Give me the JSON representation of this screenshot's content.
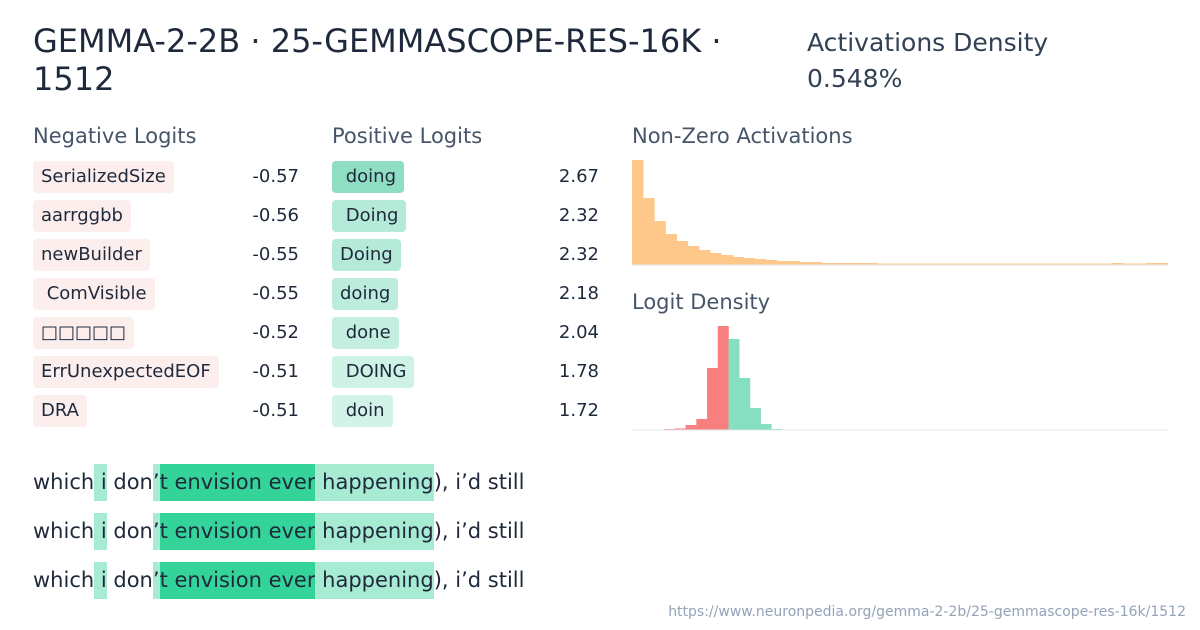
{
  "header": {
    "title": "GEMMA-2-2B · 25-GEMMASCOPE-RES-16K · 1512",
    "density_label": "Activations Density",
    "density_value": "0.548%"
  },
  "negative_logits": {
    "title": "Negative Logits",
    "color": "#fdeeee",
    "tokens": [
      "SerializedSize",
      "aarrggbb",
      "newBuilder",
      " ComVisible",
      "□□□□□",
      "ErrUnexpectedEOF",
      "DRA"
    ],
    "values": [
      -0.57,
      -0.56,
      -0.55,
      -0.55,
      -0.52,
      -0.51,
      -0.51
    ]
  },
  "positive_logits": {
    "title": "Positive Logits",
    "tokens": [
      " doing",
      " Doing",
      "Doing",
      "doing",
      " done",
      " DOING",
      " doin"
    ],
    "values": [
      2.67,
      2.32,
      2.32,
      2.18,
      2.04,
      1.78,
      1.72
    ],
    "colors": [
      "#8fdec3",
      "#b4ead7",
      "#b4ead7",
      "#bcecdb",
      "#c4eee0",
      "#cff2e6",
      "#d2f3e8"
    ]
  },
  "activations_chart": {
    "title": "Non-Zero Activations",
    "color": "#fdc88a",
    "values": [
      105,
      67,
      44,
      31,
      24,
      19,
      15,
      12,
      10,
      8,
      7,
      6,
      5,
      4,
      4,
      3,
      3,
      2,
      2,
      2,
      2,
      2,
      1.5,
      1.5,
      1.5,
      1.5,
      1.5,
      1.5,
      1.5,
      1.5,
      1.5,
      1.5,
      1.5,
      1.5,
      1.5,
      1.5,
      1.5,
      1.5,
      1.5,
      1.5,
      1.5,
      1.5,
      1.5,
      2,
      1.5,
      1.5,
      2,
      2
    ]
  },
  "logit_density_chart": {
    "title": "Logit Density",
    "values": [
      0,
      0,
      0,
      1,
      1.5,
      5,
      11,
      62,
      104,
      91,
      52,
      22,
      6,
      1,
      0,
      0,
      0,
      0,
      0,
      0,
      0,
      0,
      0,
      0,
      0,
      0,
      0,
      0,
      0,
      0,
      0,
      0,
      0,
      0,
      0,
      0,
      0,
      0,
      0,
      0,
      0,
      0,
      0,
      0,
      0,
      0,
      0,
      0,
      0,
      0
    ],
    "colors": [
      "#f87f7f",
      "#f87f7f",
      "#f87f7f",
      "#f87f7f",
      "#f87f7f",
      "#f87f7f",
      "#f87f7f",
      "#f87f7f",
      "#f87f7f",
      "#86dfc0",
      "#86dfc0",
      "#86dfc0",
      "#86dfc0",
      "#86dfc0",
      "#86dfc0",
      "#86dfc0",
      "#86dfc0",
      "#86dfc0",
      "#86dfc0",
      "#86dfc0",
      "#86dfc0",
      "#86dfc0",
      "#86dfc0",
      "#86dfc0",
      "#86dfc0",
      "#86dfc0",
      "#86dfc0",
      "#86dfc0",
      "#86dfc0",
      "#86dfc0",
      "#86dfc0",
      "#86dfc0",
      "#86dfc0",
      "#86dfc0",
      "#86dfc0",
      "#86dfc0",
      "#86dfc0",
      "#86dfc0",
      "#86dfc0",
      "#86dfc0",
      "#86dfc0",
      "#86dfc0",
      "#86dfc0",
      "#86dfc0",
      "#86dfc0",
      "#86dfc0",
      "#86dfc0",
      "#86dfc0",
      "#86dfc0",
      "#86dfc0"
    ]
  },
  "examples": [
    {
      "tokens": [
        "which",
        " i",
        " don",
        "’",
        "t",
        " envision",
        " ever",
        " happening",
        "),",
        " i’d",
        " still"
      ],
      "colors": [
        "none",
        "#a6ebd2",
        "none",
        "#a6ebd2",
        "#34d399",
        "#34d399",
        "#34d399",
        "#a6ebd2",
        "none",
        "none",
        "none"
      ]
    },
    {
      "tokens": [
        "which",
        " i",
        " don",
        "’",
        "t",
        " envision",
        " ever",
        " happening",
        "),",
        " i’d",
        " still"
      ],
      "colors": [
        "none",
        "#a6ebd2",
        "none",
        "#a6ebd2",
        "#34d399",
        "#34d399",
        "#34d399",
        "#a6ebd2",
        "none",
        "none",
        "none"
      ]
    },
    {
      "tokens": [
        "which",
        " i",
        " don",
        "’",
        "t",
        " envision",
        " ever",
        " happening",
        "),",
        " i’d",
        " still"
      ],
      "colors": [
        "none",
        "#a6ebd2",
        "none",
        "#a6ebd2",
        "#34d399",
        "#34d399",
        "#34d399",
        "#a6ebd2",
        "none",
        "none",
        "none"
      ]
    }
  ],
  "footer": {
    "url": "https://www.neuronpedia.org/gemma-2-2b/25-gemmascope-res-16k/1512"
  }
}
